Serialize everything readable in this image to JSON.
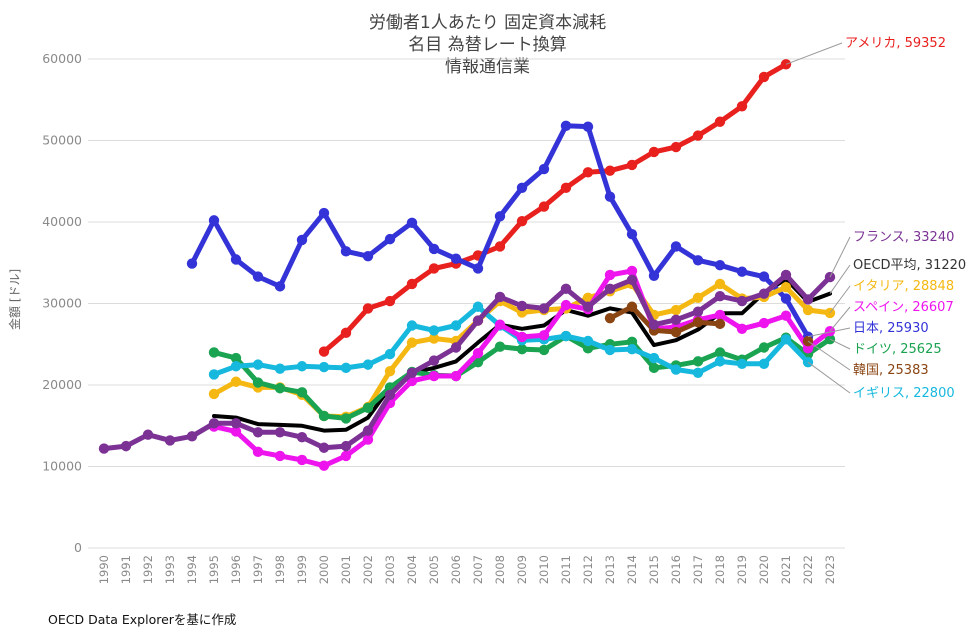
{
  "chart_data": {
    "type": "line",
    "title": [
      "労働者1人あたり 固定資本減耗",
      "名目 為替レート換算",
      "情報通信業"
    ],
    "xlabel": "",
    "ylabel": "金額 [ドル]",
    "source": "OECD Data Explorerを基に作成",
    "ylim": [
      0,
      60000
    ],
    "yticks": [
      0,
      10000,
      20000,
      30000,
      40000,
      50000,
      60000
    ],
    "ytick_labels": [
      "0",
      "10000",
      "20000",
      "30000",
      "40000",
      "50000",
      "60000"
    ],
    "categories": [
      "1990",
      "1991",
      "1992",
      "1993",
      "1994",
      "1995",
      "1996",
      "1997",
      "1998",
      "1999",
      "2000",
      "2001",
      "2002",
      "2003",
      "2004",
      "2005",
      "2006",
      "2007",
      "2008",
      "2009",
      "2010",
      "2011",
      "2012",
      "2013",
      "2014",
      "2015",
      "2016",
      "2017",
      "2018",
      "2019",
      "2020",
      "2021",
      "2022",
      "2023"
    ],
    "series": [
      {
        "name": "アメリカ",
        "label": "アメリカ, 59352",
        "color": "#e8201e",
        "markers": true,
        "thick": false,
        "values": [
          null,
          null,
          null,
          null,
          null,
          null,
          null,
          null,
          null,
          null,
          24100,
          26400,
          29400,
          30300,
          32400,
          34300,
          34900,
          35900,
          37000,
          40100,
          41900,
          44200,
          46100,
          46300,
          47000,
          48600,
          49200,
          50600,
          52300,
          54200,
          57800,
          59352,
          null,
          null
        ]
      },
      {
        "name": "日本",
        "label": "日本, 25930",
        "color": "#3333d8",
        "markers": true,
        "thick": false,
        "values": [
          null,
          null,
          null,
          null,
          34900,
          40200,
          35400,
          33300,
          32100,
          37800,
          41100,
          36400,
          35800,
          37900,
          39900,
          36700,
          35500,
          34300,
          40700,
          44200,
          46500,
          51800,
          51700,
          43100,
          38500,
          33400,
          37000,
          35300,
          34700,
          33900,
          33300,
          30600,
          25930,
          null
        ]
      },
      {
        "name": "フランス",
        "label": "フランス, 33240",
        "color": "#7b3294",
        "markers": true,
        "thick": false,
        "values": [
          12200,
          12500,
          13900,
          13200,
          13700,
          15300,
          15300,
          14200,
          14200,
          13600,
          12300,
          12500,
          14400,
          18800,
          21500,
          23000,
          24600,
          27900,
          30800,
          29700,
          29400,
          31800,
          29600,
          31800,
          32900,
          27400,
          28000,
          29000,
          30900,
          30300,
          31200,
          33500,
          30500,
          33240
        ]
      },
      {
        "name": "イタリア",
        "label": "イタリア, 28848",
        "color": "#f5b812",
        "markers": true,
        "thick": false,
        "values": [
          null,
          null,
          null,
          null,
          null,
          18900,
          20400,
          19700,
          19700,
          18800,
          16200,
          16100,
          17300,
          21700,
          25200,
          25700,
          25400,
          27900,
          30300,
          28900,
          29200,
          29400,
          30700,
          31500,
          32400,
          28600,
          29200,
          30700,
          32400,
          30600,
          30800,
          32000,
          29200,
          28848
        ]
      },
      {
        "name": "スペイン",
        "label": "スペイン, 26607",
        "color": "#ee14ee",
        "markers": true,
        "thick": false,
        "values": [
          null,
          null,
          null,
          null,
          null,
          14900,
          14300,
          11800,
          11300,
          10800,
          10100,
          11300,
          13300,
          17800,
          20500,
          21100,
          21100,
          23900,
          27400,
          25900,
          26100,
          29800,
          29300,
          33500,
          34000,
          26900,
          27100,
          28000,
          28600,
          26900,
          27600,
          28500,
          24500,
          26607
        ]
      },
      {
        "name": "ドイツ",
        "label": "ドイツ, 25625",
        "color": "#1aa350",
        "markers": true,
        "thick": false,
        "values": [
          null,
          null,
          null,
          null,
          null,
          24000,
          23300,
          20300,
          19600,
          19100,
          16200,
          15900,
          17200,
          19700,
          21600,
          21200,
          21100,
          22800,
          24700,
          24400,
          24300,
          26000,
          24500,
          25000,
          25300,
          22100,
          22400,
          22900,
          24000,
          23100,
          24600,
          25800,
          23800,
          25625
        ]
      },
      {
        "name": "韓国",
        "label": "韓国, 25383",
        "color": "#8b4513",
        "markers": true,
        "thick": false,
        "values": [
          null,
          null,
          null,
          null,
          null,
          null,
          null,
          null,
          null,
          null,
          null,
          null,
          null,
          null,
          null,
          null,
          null,
          null,
          null,
          null,
          null,
          null,
          null,
          28200,
          29600,
          26700,
          26500,
          27700,
          27500,
          null,
          null,
          null,
          25383,
          null
        ]
      },
      {
        "name": "イギリス",
        "label": "イギリス, 22800",
        "color": "#16b8de",
        "markers": true,
        "thick": false,
        "values": [
          null,
          null,
          null,
          null,
          null,
          21300,
          22300,
          22500,
          22000,
          22300,
          22200,
          22100,
          22500,
          23800,
          27300,
          26700,
          27300,
          29600,
          27300,
          25500,
          25600,
          26000,
          25400,
          24300,
          24400,
          23300,
          21900,
          21500,
          22900,
          22600,
          22600,
          25600,
          22800,
          null
        ]
      },
      {
        "name": "OECD平均",
        "label": "OECD平均, 31220",
        "color": "#000000",
        "markers": false,
        "thick": true,
        "values": [
          null,
          null,
          null,
          null,
          null,
          16200,
          16000,
          15200,
          15100,
          15000,
          14400,
          14500,
          16000,
          19700,
          21500,
          22100,
          22900,
          25200,
          27400,
          26900,
          27300,
          29200,
          28500,
          29400,
          28900,
          24900,
          25500,
          26800,
          28800,
          28800,
          31300,
          33000,
          30200,
          31220
        ]
      }
    ],
    "legend": [
      "アメリカ, 59352",
      "フランス, 33240",
      "OECD平均, 31220",
      "イタリア, 28848",
      "スペイン, 26607",
      "日本, 25930",
      "ドイツ, 25625",
      "韓国, 25383",
      "イギリス, 22800"
    ]
  }
}
